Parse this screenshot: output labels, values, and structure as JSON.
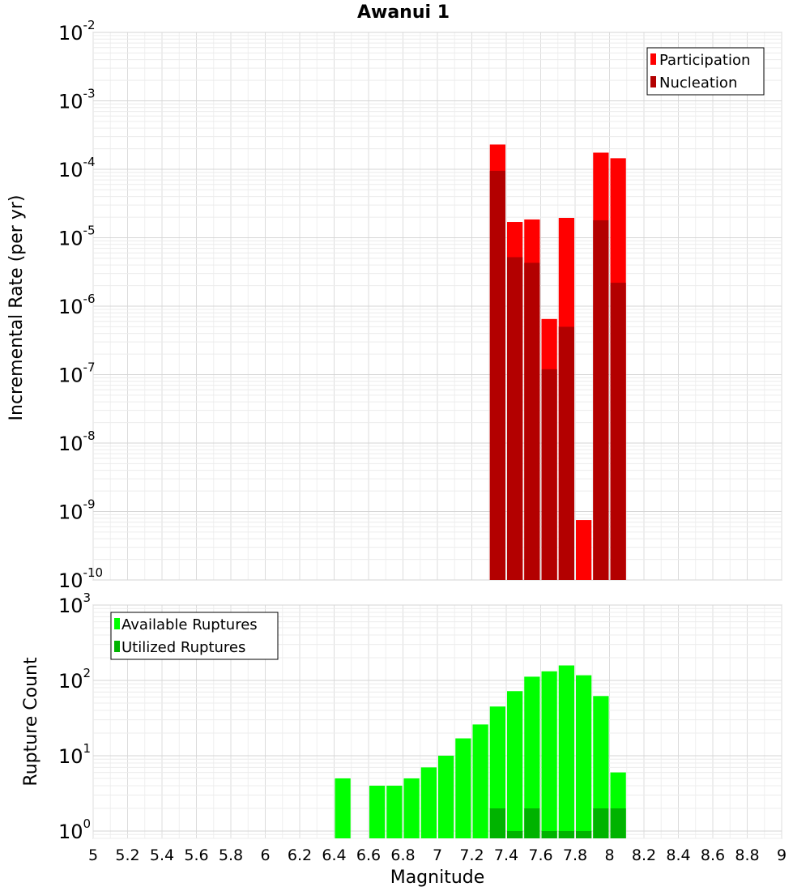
{
  "chart_data": [
    {
      "type": "bar",
      "title": "Awanui 1",
      "xlabel": "",
      "ylabel": "Incremental Rate (per yr)",
      "yscale": "log",
      "xlim": [
        5,
        9
      ],
      "ylim": [
        1e-10,
        0.01
      ],
      "ytick_exponents": [
        -10,
        -9,
        -8,
        -7,
        -6,
        -5,
        -4,
        -3,
        -2
      ],
      "grid": true,
      "legend_position": "top-right",
      "bin_width": 0.1,
      "series": [
        {
          "name": "Participation",
          "color": "#ff0000",
          "x": [
            7.35,
            7.45,
            7.55,
            7.65,
            7.75,
            7.85,
            7.95,
            8.05
          ],
          "values": [
            0.00023,
            1.7e-05,
            1.85e-05,
            6.5e-07,
            1.95e-05,
            7.5e-10,
            0.000175,
            0.000145
          ]
        },
        {
          "name": "Nucleation",
          "color": "#b30000",
          "x": [
            7.35,
            7.45,
            7.55,
            7.65,
            7.75,
            7.95,
            8.05
          ],
          "values": [
            9.5e-05,
            5.2e-06,
            4.3e-06,
            1.2e-07,
            5e-07,
            1.8e-05,
            2.2e-06
          ]
        }
      ]
    },
    {
      "type": "bar",
      "xlabel": "Magnitude",
      "ylabel": "Rupture Count",
      "yscale": "log",
      "xlim": [
        5,
        9
      ],
      "ylim": [
        0.8,
        1000
      ],
      "ytick_exponents": [
        0,
        1,
        2,
        3
      ],
      "xticks": [
        "5",
        "5.2",
        "5.4",
        "5.6",
        "5.8",
        "6",
        "6.2",
        "6.4",
        "6.6",
        "6.8",
        "7",
        "7.2",
        "7.4",
        "7.6",
        "7.8",
        "8",
        "8.2",
        "8.4",
        "8.6",
        "8.8",
        "9"
      ],
      "grid": true,
      "legend_position": "top-left",
      "bin_width": 0.1,
      "series": [
        {
          "name": "Available Ruptures",
          "color": "#00ff00",
          "x": [
            6.45,
            6.65,
            6.75,
            6.85,
            6.95,
            7.05,
            7.15,
            7.25,
            7.35,
            7.45,
            7.55,
            7.65,
            7.75,
            7.85,
            7.95,
            8.05
          ],
          "values": [
            5,
            4,
            4,
            5,
            7,
            10,
            17,
            26,
            45,
            72,
            112,
            132,
            158,
            117,
            62,
            6
          ]
        },
        {
          "name": "Utilized Ruptures",
          "color": "#00b300",
          "x": [
            7.35,
            7.45,
            7.55,
            7.65,
            7.75,
            7.85,
            7.95,
            8.05
          ],
          "values": [
            2,
            1,
            2,
            1,
            1,
            1,
            2,
            2
          ]
        }
      ]
    }
  ]
}
